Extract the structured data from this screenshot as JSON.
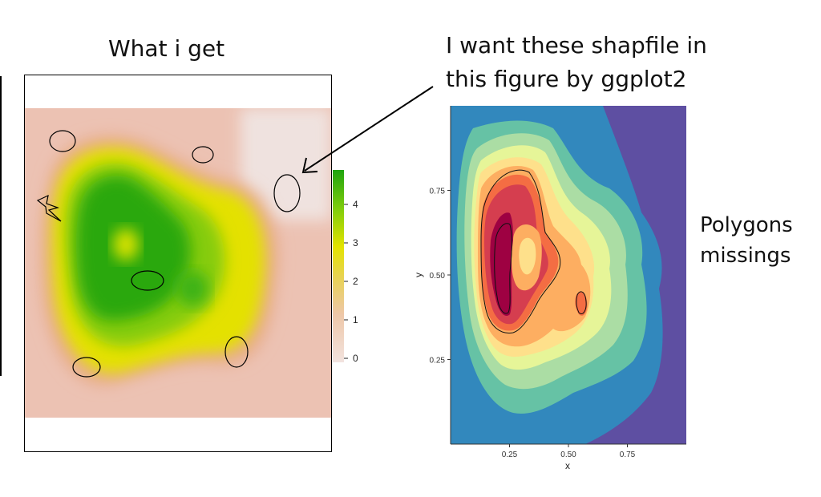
{
  "annotations": {
    "left_title": "What i get",
    "right_title_line1": "I want these  shapfile in",
    "right_title_line2": "this figure by ggplot2",
    "right_note_line1": "Polygons",
    "right_note_line2": "missings"
  },
  "chart_data": [
    {
      "type": "heatmap",
      "title": "What i get",
      "legend": {
        "placement": "right",
        "ticks": [
          0,
          1,
          2,
          3,
          4
        ],
        "range": [
          0,
          5
        ]
      },
      "colors": {
        "high": "#1fa40f",
        "mid": "#e6e000",
        "low": "#f2e3df",
        "edge": "#e9b8a2"
      },
      "polygons": 7
    },
    {
      "type": "heatmap",
      "xlabel": "x",
      "ylabel": "y",
      "x_ticks": [
        "0.25",
        "0.50",
        "0.75"
      ],
      "y_ticks": [
        "0.75",
        "0.50",
        "0.25"
      ],
      "xlim": [
        0.0,
        1.0
      ],
      "ylim": [
        0.0,
        1.0
      ],
      "palette": [
        "#5e4fa2",
        "#3288bd",
        "#66c2a5",
        "#abdda4",
        "#e6f598",
        "#fee08b",
        "#fdae61",
        "#f46d43",
        "#d53e4f",
        "#9e0142"
      ],
      "grid": false
    }
  ]
}
